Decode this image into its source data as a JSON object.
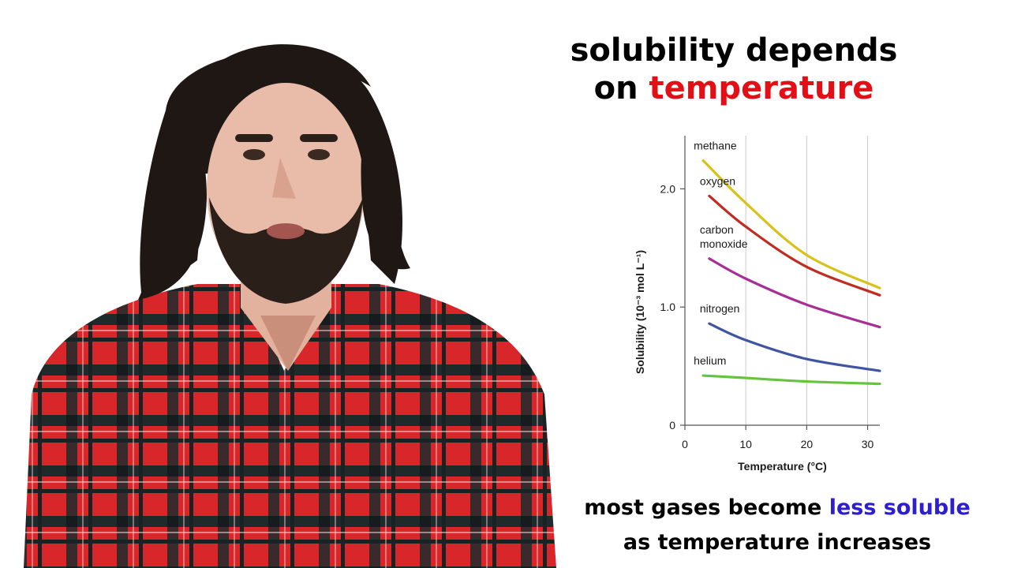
{
  "slide": {
    "title_line1": "solubility depends",
    "title_line2_prefix": "on ",
    "title_line2_accent": "temperature",
    "caption_line1_prefix": "most gases become ",
    "caption_line1_accent": "less soluble",
    "caption_line2": "as temperature increases",
    "title_accent_color": "#e30f16",
    "caption_accent_color": "#2d1fd0"
  },
  "chart_data": {
    "type": "line",
    "title": "",
    "xlabel": "Temperature (°C)",
    "ylabel": "Solubility (10⁻³ mol L⁻¹)",
    "xlim": [
      0,
      32
    ],
    "ylim": [
      0,
      2.45
    ],
    "xticks": [
      0,
      10,
      20,
      30
    ],
    "xtick_labels": [
      "0",
      "10",
      "20",
      "30"
    ],
    "yticks": [
      0,
      1.0,
      2.0
    ],
    "ytick_labels": [
      "0",
      "1.0",
      "2.0"
    ],
    "grid": "vertical",
    "legend": "inline labels beside each curve",
    "series": [
      {
        "name": "methane",
        "color": "#d8c21a",
        "x": [
          3,
          10,
          20,
          32
        ],
        "y": [
          2.24,
          1.88,
          1.44,
          1.16
        ]
      },
      {
        "name": "oxygen",
        "color": "#bf2c22",
        "x": [
          4,
          10,
          20,
          32
        ],
        "y": [
          1.94,
          1.68,
          1.34,
          1.1
        ]
      },
      {
        "name": "carbon monoxide",
        "color": "#a63096",
        "x": [
          4,
          10,
          20,
          32
        ],
        "y": [
          1.41,
          1.24,
          1.02,
          0.83
        ]
      },
      {
        "name": "nitrogen",
        "color": "#3f55a1",
        "x": [
          4,
          10,
          20,
          32
        ],
        "y": [
          0.86,
          0.72,
          0.56,
          0.46
        ]
      },
      {
        "name": "helium",
        "color": "#66c33d",
        "x": [
          3,
          10,
          20,
          32
        ],
        "y": [
          0.42,
          0.4,
          0.37,
          0.35
        ]
      }
    ],
    "curve_labels": [
      {
        "lines": [
          "methane"
        ],
        "series": "methane"
      },
      {
        "lines": [
          "oxygen"
        ],
        "series": "oxygen"
      },
      {
        "lines": [
          "carbon",
          "monoxide"
        ],
        "series": "carbon monoxide"
      },
      {
        "lines": [
          "nitrogen"
        ],
        "series": "nitrogen"
      },
      {
        "lines": [
          "helium"
        ],
        "series": "helium"
      }
    ]
  }
}
